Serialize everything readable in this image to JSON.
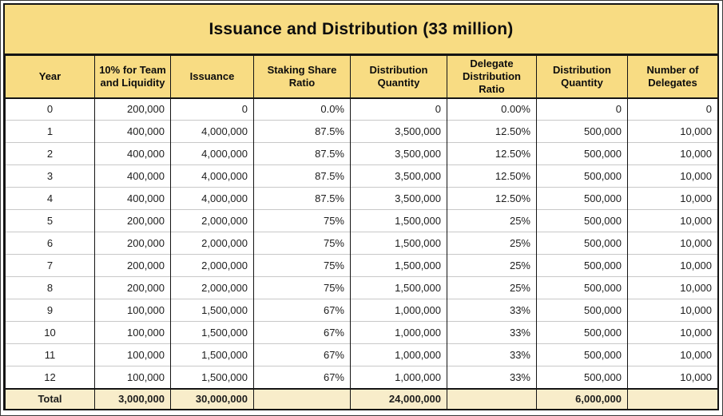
{
  "title": "Issuance and Distribution (33 million)",
  "chart_data": {
    "type": "table",
    "title": "Issuance and Distribution (33 million)",
    "columns": [
      "Year",
      "10% for Team and Liquidity",
      "Issuance",
      "Staking Share Ratio",
      "Distribution Quantity",
      "Delegate Distribution Ratio",
      "Distribution Quantity",
      "Number of Delegates"
    ],
    "rows": [
      [
        "0",
        "200,000",
        "0",
        "0.0%",
        "0",
        "0.00%",
        "0",
        "0"
      ],
      [
        "1",
        "400,000",
        "4,000,000",
        "87.5%",
        "3,500,000",
        "12.50%",
        "500,000",
        "10,000"
      ],
      [
        "2",
        "400,000",
        "4,000,000",
        "87.5%",
        "3,500,000",
        "12.50%",
        "500,000",
        "10,000"
      ],
      [
        "3",
        "400,000",
        "4,000,000",
        "87.5%",
        "3,500,000",
        "12.50%",
        "500,000",
        "10,000"
      ],
      [
        "4",
        "400,000",
        "4,000,000",
        "87.5%",
        "3,500,000",
        "12.50%",
        "500,000",
        "10,000"
      ],
      [
        "5",
        "200,000",
        "2,000,000",
        "75%",
        "1,500,000",
        "25%",
        "500,000",
        "10,000"
      ],
      [
        "6",
        "200,000",
        "2,000,000",
        "75%",
        "1,500,000",
        "25%",
        "500,000",
        "10,000"
      ],
      [
        "7",
        "200,000",
        "2,000,000",
        "75%",
        "1,500,000",
        "25%",
        "500,000",
        "10,000"
      ],
      [
        "8",
        "200,000",
        "2,000,000",
        "75%",
        "1,500,000",
        "25%",
        "500,000",
        "10,000"
      ],
      [
        "9",
        "100,000",
        "1,500,000",
        "67%",
        "1,000,000",
        "33%",
        "500,000",
        "10,000"
      ],
      [
        "10",
        "100,000",
        "1,500,000",
        "67%",
        "1,000,000",
        "33%",
        "500,000",
        "10,000"
      ],
      [
        "11",
        "100,000",
        "1,500,000",
        "67%",
        "1,000,000",
        "33%",
        "500,000",
        "10,000"
      ],
      [
        "12",
        "100,000",
        "1,500,000",
        "67%",
        "1,000,000",
        "33%",
        "500,000",
        "10,000"
      ]
    ],
    "total_row": [
      "Total",
      "3,000,000",
      "30,000,000",
      "",
      "24,000,000",
      "",
      "6,000,000",
      ""
    ]
  },
  "colors": {
    "gold": "#F8DC83",
    "cream": "#F8EDCA",
    "border_dark": "#141414",
    "row_separator": "#C8C8C8"
  }
}
